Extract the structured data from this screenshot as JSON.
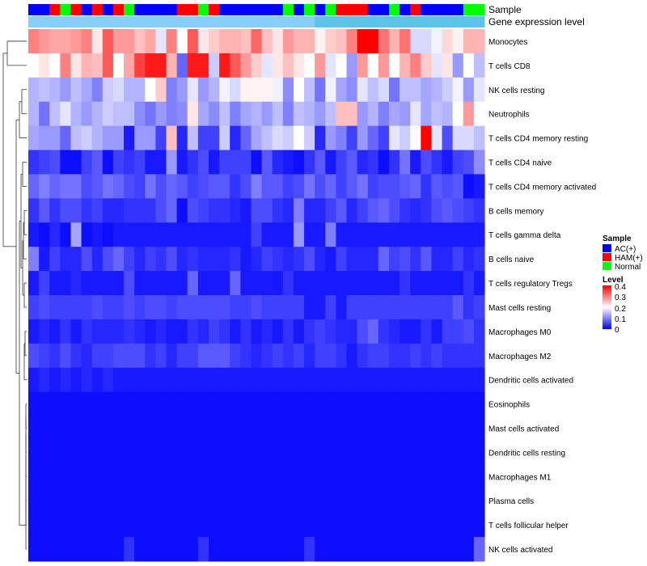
{
  "chart_data": {
    "type": "heatmap",
    "title": "",
    "annotation_tracks": [
      "Sample",
      "Gene expression level"
    ],
    "sample_groups": [
      "AC(+)",
      "AC(+)",
      "HAM(+)",
      "Normal",
      "HAM(+)",
      "AC(+)",
      "HAM(+)",
      "AC(+)",
      "HAM(+)",
      "Normal",
      "AC(+)",
      "AC(+)",
      "AC(+)",
      "AC(+)",
      "HAM(+)",
      "HAM(+)",
      "Normal",
      "HAM(+)",
      "AC(+)",
      "AC(+)",
      "AC(+)",
      "AC(+)",
      "AC(+)",
      "AC(+)",
      "Normal",
      "AC(+)",
      "Normal",
      "AC(+)",
      "Normal",
      "HAM(+)",
      "HAM(+)",
      "HAM(+)",
      "AC(+)",
      "AC(+)",
      "Normal",
      "AC(+)",
      "HAM(+)",
      "AC(+)",
      "AC(+)",
      "AC(+)",
      "AC(+)",
      "Normal",
      "Normal"
    ],
    "sample_colors": {
      "AC(+)": "#0000ff",
      "HAM(+)": "#ff0000",
      "Normal": "#00ff00"
    },
    "gene_expression_colors": [
      "#87cefa",
      "#5fc3e8"
    ],
    "rows": [
      "Monocytes",
      "T cells CD8",
      "NK cells resting",
      "Neutrophils",
      "T cells CD4 memory resting",
      "T cells CD4 naive",
      "T cells CD4 memory activated",
      "B cells memory",
      "T cells gamma delta",
      "B cells naive",
      "T cells regulatory  Tregs",
      "Mast cells resting",
      "Macrophages M0",
      "Macrophages M2",
      "Dendritic cells activated",
      "Eosinophils",
      "Mast cells activated",
      "Dendritic cells resting",
      "Macrophages M1",
      "Plasma cells",
      "T cells follicular helper",
      "NK cells activated"
    ],
    "values": [
      [
        0.3,
        0.28,
        0.27,
        0.27,
        0.28,
        0.3,
        0.22,
        0.33,
        0.28,
        0.28,
        0.25,
        0.27,
        0.18,
        0.3,
        0.2,
        0.33,
        0.22,
        0.24,
        0.26,
        0.26,
        0.25,
        0.32,
        0.25,
        0.22,
        0.28,
        0.26,
        0.26,
        0.21,
        0.24,
        0.25,
        0.3,
        0.4,
        0.4,
        0.31,
        0.26,
        0.31,
        0.17,
        0.17,
        0.19,
        0.23,
        0.21,
        0.26,
        0.26
      ],
      [
        0.2,
        0.22,
        0.2,
        0.3,
        0.22,
        0.26,
        0.25,
        0.33,
        0.2,
        0.27,
        0.35,
        0.38,
        0.38,
        0.26,
        0.08,
        0.38,
        0.38,
        0.16,
        0.38,
        0.33,
        0.28,
        0.24,
        0.18,
        0.22,
        0.25,
        0.22,
        0.2,
        0.28,
        0.18,
        0.2,
        0.12,
        0.28,
        0.2,
        0.28,
        0.2,
        0.26,
        0.3,
        0.24,
        0.18,
        0.22,
        0.12,
        0.2,
        0.15
      ],
      [
        0.14,
        0.15,
        0.14,
        0.12,
        0.15,
        0.13,
        0.1,
        0.16,
        0.17,
        0.14,
        0.14,
        0.2,
        0.24,
        0.1,
        0.12,
        0.18,
        0.12,
        0.14,
        0.19,
        0.17,
        0.21,
        0.21,
        0.21,
        0.19,
        0.11,
        0.2,
        0.15,
        0.09,
        0.19,
        0.13,
        0.11,
        0.18,
        0.15,
        0.17,
        0.09,
        0.15,
        0.15,
        0.13,
        0.14,
        0.16,
        0.19,
        0.12,
        0.18
      ],
      [
        0.14,
        0.09,
        0.15,
        0.18,
        0.14,
        0.12,
        0.14,
        0.16,
        0.15,
        0.15,
        0.11,
        0.09,
        0.12,
        0.1,
        0.11,
        0.22,
        0.13,
        0.11,
        0.15,
        0.1,
        0.13,
        0.14,
        0.12,
        0.15,
        0.1,
        0.15,
        0.14,
        0.12,
        0.15,
        0.25,
        0.25,
        0.12,
        0.14,
        0.1,
        0.13,
        0.12,
        0.18,
        0.13,
        0.15,
        0.14,
        0.2,
        0.28,
        0.2
      ],
      [
        0.13,
        0.12,
        0.12,
        0.08,
        0.15,
        0.16,
        0.14,
        0.12,
        0.12,
        0.02,
        0.12,
        0.12,
        0.05,
        0.25,
        0.03,
        0.15,
        0.05,
        0.05,
        0.16,
        0.03,
        0.08,
        0.13,
        0.15,
        0.17,
        0.16,
        0.2,
        0.16,
        0.03,
        0.12,
        0.1,
        0.05,
        0.12,
        0.08,
        0.05,
        0.18,
        0.16,
        0.2,
        0.4,
        0.18,
        0.06,
        0.17,
        0.17,
        0.15
      ],
      [
        0.04,
        0.05,
        0.06,
        0.01,
        0.01,
        0.05,
        0.07,
        0.01,
        0.05,
        0.04,
        0.05,
        0.02,
        0.02,
        0.12,
        0.02,
        0.04,
        0.06,
        0.02,
        0.05,
        0.05,
        0.05,
        0.01,
        0.07,
        0.03,
        0.02,
        0.01,
        0.04,
        0.07,
        0.02,
        0.05,
        0.07,
        0.03,
        0.04,
        0.01,
        0.04,
        0.09,
        0.02,
        0.06,
        0.04,
        0.02,
        0.05,
        0.06,
        0.11
      ],
      [
        0.08,
        0.1,
        0.08,
        0.09,
        0.09,
        0.06,
        0.07,
        0.09,
        0.08,
        0.06,
        0.05,
        0.09,
        0.06,
        0.08,
        0.07,
        0.05,
        0.06,
        0.07,
        0.07,
        0.04,
        0.06,
        0.1,
        0.07,
        0.07,
        0.05,
        0.06,
        0.09,
        0.06,
        0.08,
        0.05,
        0.07,
        0.09,
        0.05,
        0.06,
        0.06,
        0.07,
        0.08,
        0.04,
        0.07,
        0.06,
        0.07,
        0.01,
        0.02
      ],
      [
        0.04,
        0.07,
        0.04,
        0.06,
        0.06,
        0.04,
        0.05,
        0.03,
        0.03,
        0.04,
        0.04,
        0.04,
        0.06,
        0.08,
        0.01,
        0.06,
        0.05,
        0.04,
        0.04,
        0.03,
        0.02,
        0.06,
        0.06,
        0.04,
        0.03,
        0.1,
        0.03,
        0.03,
        0.05,
        0.07,
        0.03,
        0.05,
        0.07,
        0.08,
        0.06,
        0.04,
        0.03,
        0.04,
        0.06,
        0.07,
        0.06,
        0.05,
        0.04
      ],
      [
        0.02,
        0.01,
        0.03,
        0.01,
        0.13,
        0.01,
        0.02,
        0.01,
        0.02,
        0.02,
        0.02,
        0.02,
        0.02,
        0.02,
        0.02,
        0.02,
        0.02,
        0.02,
        0.02,
        0.02,
        0.02,
        0.05,
        0.02,
        0.02,
        0.02,
        0.12,
        0.02,
        0.02,
        0.1,
        0.02,
        0.02,
        0.02,
        0.02,
        0.02,
        0.02,
        0.02,
        0.02,
        0.02,
        0.02,
        0.02,
        0.02,
        0.02,
        0.02
      ],
      [
        0.1,
        0.02,
        0.05,
        0.03,
        0.03,
        0.06,
        0.03,
        0.06,
        0.08,
        0.05,
        0.03,
        0.05,
        0.04,
        0.06,
        0.03,
        0.04,
        0.03,
        0.03,
        0.03,
        0.04,
        0.02,
        0.03,
        0.05,
        0.04,
        0.03,
        0.04,
        0.06,
        0.03,
        0.02,
        0.05,
        0.03,
        0.03,
        0.03,
        0.08,
        0.05,
        0.06,
        0.04,
        0.07,
        0.03,
        0.03,
        0.05,
        0.03,
        0.04
      ],
      [
        0.02,
        0.05,
        0.02,
        0.02,
        0.03,
        0.02,
        0.02,
        0.02,
        0.02,
        0.06,
        0.02,
        0.02,
        0.02,
        0.02,
        0.02,
        0.08,
        0.02,
        0.02,
        0.02,
        0.08,
        0.02,
        0.02,
        0.02,
        0.02,
        0.04,
        0.02,
        0.02,
        0.02,
        0.02,
        0.02,
        0.02,
        0.02,
        0.02,
        0.02,
        0.02,
        0.04,
        0.02,
        0.02,
        0.02,
        0.02,
        0.02,
        0.04,
        0.02
      ],
      [
        0.05,
        0.06,
        0.05,
        0.05,
        0.05,
        0.05,
        0.06,
        0.05,
        0.05,
        0.06,
        0.05,
        0.06,
        0.06,
        0.05,
        0.06,
        0.06,
        0.06,
        0.06,
        0.06,
        0.05,
        0.05,
        0.06,
        0.05,
        0.05,
        0.05,
        0.05,
        0.02,
        0.02,
        0.05,
        0.02,
        0.05,
        0.05,
        0.05,
        0.05,
        0.05,
        0.05,
        0.05,
        0.05,
        0.05,
        0.05,
        0.07,
        0.04,
        0.05
      ],
      [
        0.02,
        0.03,
        0.02,
        0.04,
        0.02,
        0.04,
        0.03,
        0.03,
        0.03,
        0.04,
        0.03,
        0.02,
        0.03,
        0.02,
        0.02,
        0.04,
        0.03,
        0.05,
        0.04,
        0.02,
        0.04,
        0.02,
        0.03,
        0.02,
        0.04,
        0.02,
        0.04,
        0.05,
        0.04,
        0.03,
        0.03,
        0.06,
        0.08,
        0.04,
        0.03,
        0.02,
        0.02,
        0.04,
        0.02,
        0.05,
        0.05,
        0.06,
        0.04
      ],
      [
        0.06,
        0.05,
        0.04,
        0.06,
        0.04,
        0.03,
        0.05,
        0.05,
        0.06,
        0.06,
        0.06,
        0.04,
        0.05,
        0.03,
        0.05,
        0.05,
        0.07,
        0.07,
        0.07,
        0.05,
        0.04,
        0.03,
        0.04,
        0.05,
        0.04,
        0.05,
        0.03,
        0.05,
        0.05,
        0.04,
        0.02,
        0.04,
        0.05,
        0.05,
        0.04,
        0.04,
        0.05,
        0.04,
        0.05,
        0.04,
        0.04,
        0.04,
        0.04
      ],
      [
        0.02,
        0.03,
        0.02,
        0.03,
        0.02,
        0.03,
        0.02,
        0.03,
        0.02,
        0.02,
        0.02,
        0.02,
        0.02,
        0.02,
        0.02,
        0.02,
        0.02,
        0.02,
        0.02,
        0.02,
        0.02,
        0.02,
        0.02,
        0.02,
        0.02,
        0.02,
        0.02,
        0.02,
        0.02,
        0.02,
        0.02,
        0.02,
        0.02,
        0.02,
        0.02,
        0.02,
        0.02,
        0.02,
        0.02,
        0.02,
        0.02,
        0.02,
        0.02
      ],
      [
        0.01,
        0.01,
        0.01,
        0.01,
        0.01,
        0.01,
        0.01,
        0.01,
        0.01,
        0.01,
        0.01,
        0.01,
        0.01,
        0.01,
        0.01,
        0.01,
        0.01,
        0.01,
        0.01,
        0.01,
        0.01,
        0.01,
        0.01,
        0.01,
        0.01,
        0.01,
        0.01,
        0.01,
        0.01,
        0.01,
        0.01,
        0.01,
        0.01,
        0.01,
        0.01,
        0.01,
        0.01,
        0.01,
        0.01,
        0.01,
        0.01,
        0.01,
        0.01
      ],
      [
        0.01,
        0.01,
        0.01,
        0.01,
        0.01,
        0.01,
        0.01,
        0.01,
        0.01,
        0.01,
        0.01,
        0.01,
        0.01,
        0.01,
        0.01,
        0.01,
        0.01,
        0.01,
        0.01,
        0.01,
        0.01,
        0.01,
        0.01,
        0.01,
        0.01,
        0.01,
        0.01,
        0.01,
        0.01,
        0.01,
        0.01,
        0.01,
        0.01,
        0.01,
        0.01,
        0.01,
        0.01,
        0.01,
        0.01,
        0.01,
        0.01,
        0.01,
        0.01
      ],
      [
        0.01,
        0.01,
        0.01,
        0.01,
        0.01,
        0.01,
        0.01,
        0.01,
        0.01,
        0.01,
        0.01,
        0.01,
        0.01,
        0.01,
        0.01,
        0.01,
        0.01,
        0.01,
        0.01,
        0.01,
        0.01,
        0.01,
        0.01,
        0.01,
        0.01,
        0.01,
        0.01,
        0.01,
        0.01,
        0.01,
        0.01,
        0.01,
        0.01,
        0.01,
        0.01,
        0.01,
        0.01,
        0.01,
        0.01,
        0.01,
        0.01,
        0.01,
        0.01
      ],
      [
        0.01,
        0.01,
        0.01,
        0.01,
        0.01,
        0.01,
        0.01,
        0.01,
        0.01,
        0.01,
        0.01,
        0.01,
        0.01,
        0.01,
        0.01,
        0.01,
        0.01,
        0.01,
        0.01,
        0.01,
        0.01,
        0.01,
        0.01,
        0.01,
        0.01,
        0.01,
        0.01,
        0.01,
        0.01,
        0.01,
        0.01,
        0.01,
        0.01,
        0.01,
        0.01,
        0.01,
        0.01,
        0.01,
        0.01,
        0.01,
        0.01,
        0.01,
        0.01
      ],
      [
        0.01,
        0.01,
        0.01,
        0.01,
        0.01,
        0.01,
        0.01,
        0.01,
        0.01,
        0.01,
        0.01,
        0.01,
        0.01,
        0.01,
        0.01,
        0.01,
        0.01,
        0.01,
        0.01,
        0.01,
        0.01,
        0.01,
        0.01,
        0.01,
        0.01,
        0.01,
        0.01,
        0.01,
        0.01,
        0.01,
        0.01,
        0.01,
        0.01,
        0.01,
        0.01,
        0.01,
        0.01,
        0.01,
        0.01,
        0.01,
        0.01,
        0.01,
        0.01
      ],
      [
        0.01,
        0.01,
        0.01,
        0.01,
        0.01,
        0.01,
        0.01,
        0.01,
        0.01,
        0.01,
        0.01,
        0.01,
        0.01,
        0.01,
        0.01,
        0.01,
        0.01,
        0.01,
        0.01,
        0.01,
        0.01,
        0.01,
        0.01,
        0.01,
        0.01,
        0.01,
        0.01,
        0.01,
        0.01,
        0.01,
        0.01,
        0.01,
        0.01,
        0.01,
        0.01,
        0.01,
        0.01,
        0.01,
        0.01,
        0.01,
        0.01,
        0.01,
        0.01
      ],
      [
        0.01,
        0.01,
        0.01,
        0.01,
        0.01,
        0.01,
        0.01,
        0.01,
        0.01,
        0.04,
        0.01,
        0.01,
        0.01,
        0.01,
        0.01,
        0.01,
        0.04,
        0.01,
        0.01,
        0.01,
        0.01,
        0.01,
        0.01,
        0.01,
        0.01,
        0.01,
        0.04,
        0.01,
        0.01,
        0.01,
        0.01,
        0.01,
        0.01,
        0.01,
        0.01,
        0.01,
        0.01,
        0.01,
        0.01,
        0.01,
        0.01,
        0.01,
        0.08
      ]
    ],
    "color_scale": {
      "min": 0,
      "max": 0.4,
      "low": "#0000ff",
      "mid": "#ffffff",
      "high": "#ff0000",
      "midpoint": 0.2
    },
    "legend": {
      "sample_title": "Sample",
      "sample_entries": [
        "AC(+)",
        "HAM(+)",
        "Normal"
      ],
      "level_title": "Level",
      "level_ticks": [
        "0.4",
        "0.3",
        "0.2",
        "0.1",
        "0"
      ],
      "placement": "right"
    }
  }
}
